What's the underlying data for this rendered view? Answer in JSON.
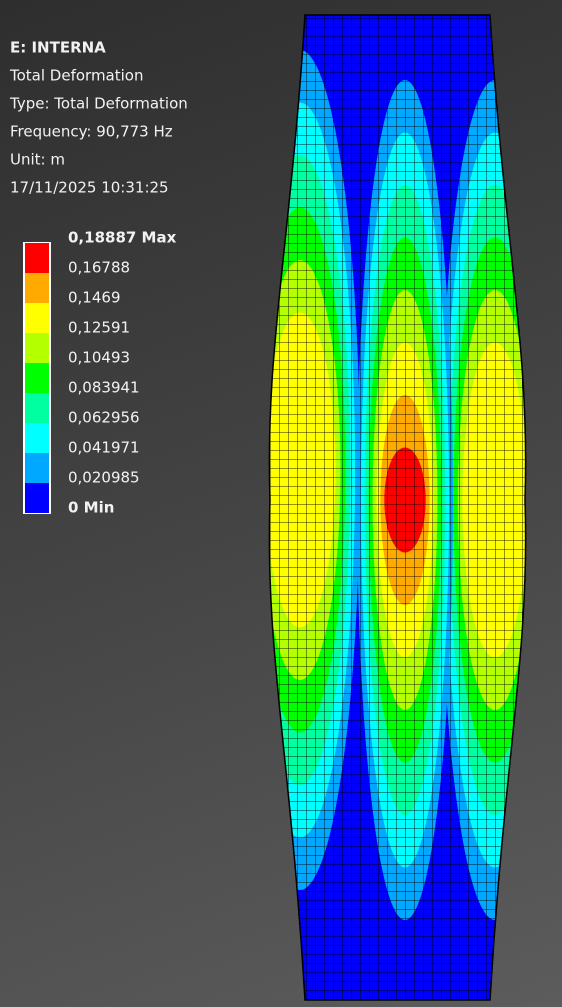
{
  "header": {
    "title": "E: INTERNA",
    "lines": [
      "Total Deformation",
      "Type: Total Deformation",
      "Frequency: 90,773 Hz",
      "Unit: m",
      "17/11/2025 10:31:25"
    ]
  },
  "legend": {
    "labels": [
      "0,18887 Max",
      "0,16788",
      "0,1469",
      "0,12591",
      "0,10493",
      "0,083941",
      "0,062956",
      "0,041971",
      "0,020985",
      "0 Min"
    ],
    "colors": [
      "#ff0000",
      "#ffaa00",
      "#ffff00",
      "#b4ff00",
      "#00ff00",
      "#00ffa0",
      "#00ffff",
      "#00a8ff",
      "#0000ff"
    ]
  }
}
